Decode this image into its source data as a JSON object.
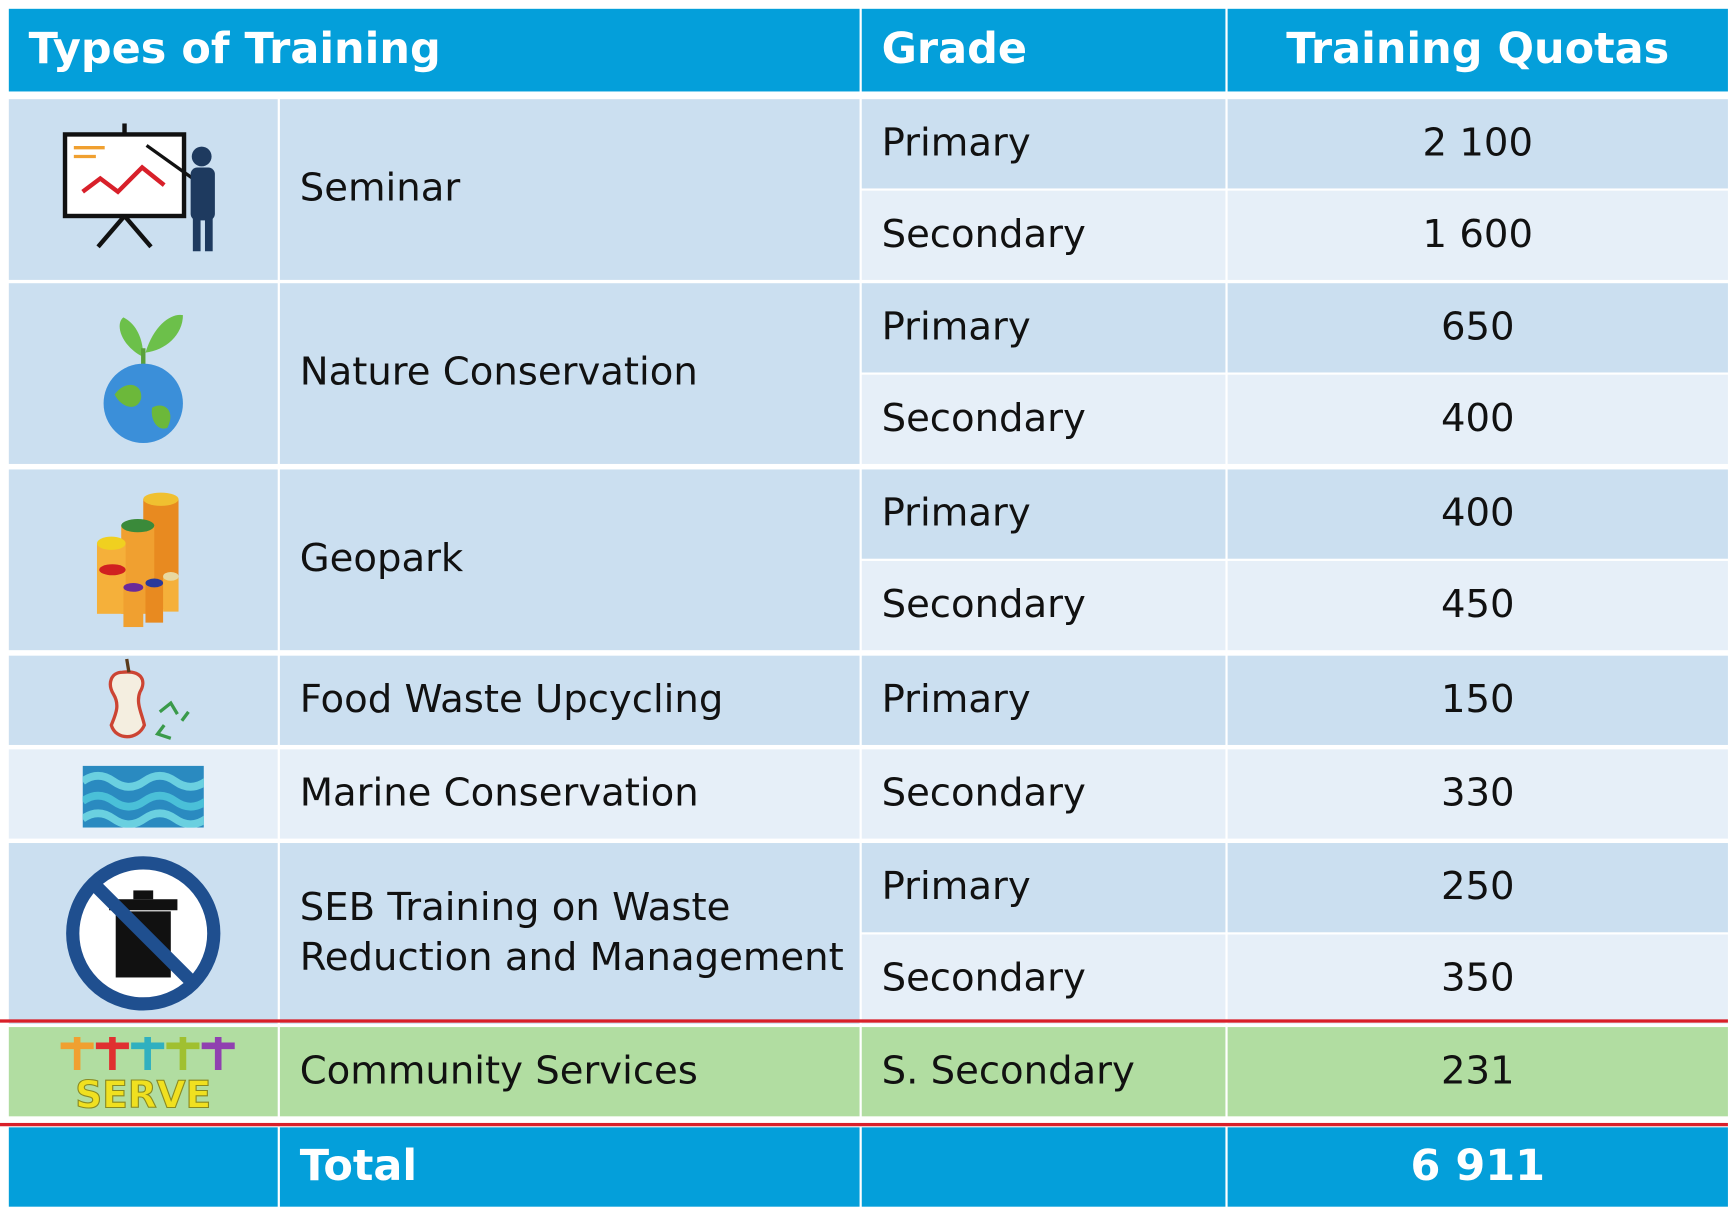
{
  "header": {
    "type": "Types of Training",
    "grade": "Grade",
    "quota": "Training Quotas"
  },
  "rows": [
    {
      "type": "Seminar",
      "grades": [
        {
          "grade": "Primary",
          "quota": "2 100"
        },
        {
          "grade": "Secondary",
          "quota": "1 600"
        }
      ]
    },
    {
      "type": "Nature Conservation",
      "grades": [
        {
          "grade": "Primary",
          "quota": "650"
        },
        {
          "grade": "Secondary",
          "quota": "400"
        }
      ]
    },
    {
      "type": "Geopark",
      "grades": [
        {
          "grade": "Primary",
          "quota": "400"
        },
        {
          "grade": "Secondary",
          "quota": "450"
        }
      ]
    },
    {
      "type": "Food Waste Upcycling",
      "grades": [
        {
          "grade": "Primary",
          "quota": "150"
        }
      ]
    },
    {
      "type": "Marine Conservation",
      "grades": [
        {
          "grade": "Secondary",
          "quota": "330"
        }
      ]
    },
    {
      "type": "SEB Training on Waste Reduction and Management",
      "grades": [
        {
          "grade": "Primary",
          "quota": "250"
        },
        {
          "grade": "Secondary",
          "quota": "350"
        }
      ]
    },
    {
      "type": "Community Services",
      "icon_text": "SERVE",
      "grades": [
        {
          "grade": "S. Secondary",
          "quota": "231"
        }
      ]
    }
  ],
  "total": {
    "label": "Total",
    "quota": "6 911"
  }
}
